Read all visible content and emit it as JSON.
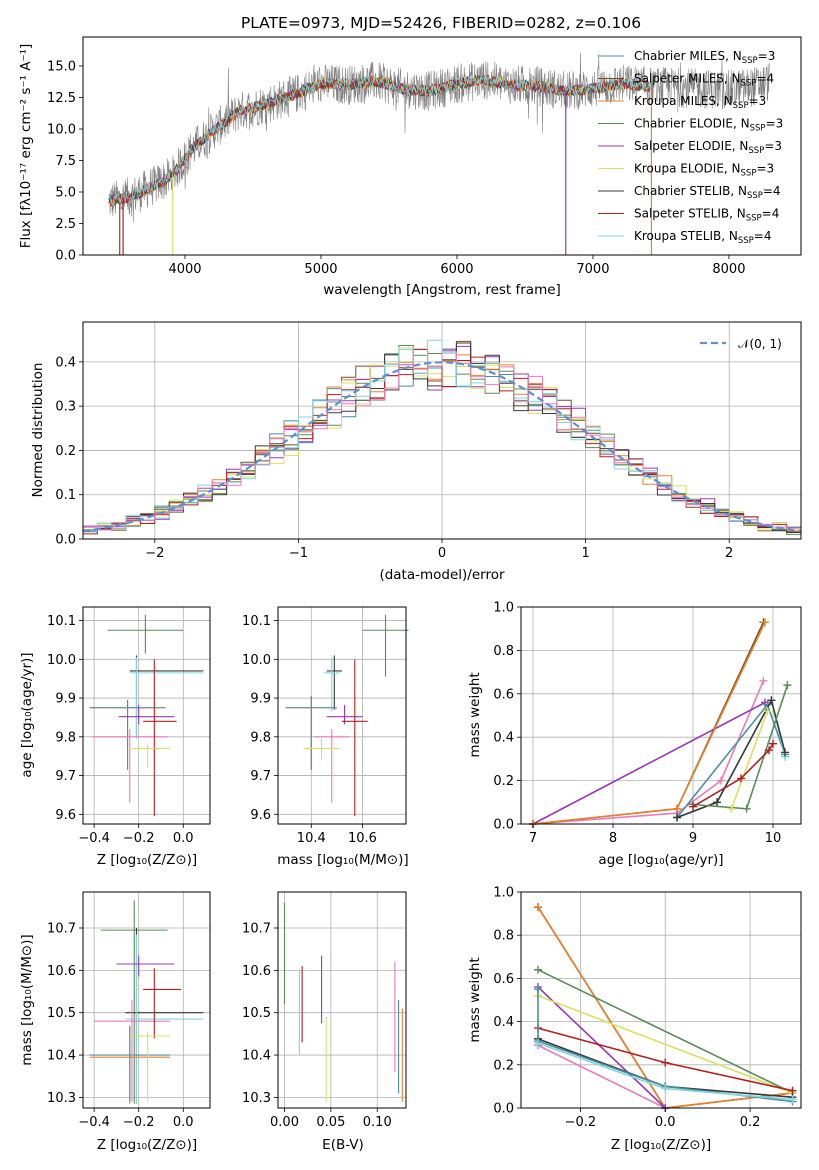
{
  "chart_data": [
    {
      "id": "spectrum",
      "type": "line",
      "title": "PLATE=0973, MJD=52426, FIBERID=0282, z=0.106",
      "xlabel": "wavelength [Angstrom, rest frame]",
      "ylabel": "Flux [fλ10⁻¹⁷ erg cm⁻² s⁻¹ A⁻¹]",
      "xlim": [
        3250,
        8530
      ],
      "ylim": [
        0,
        17.3
      ],
      "xticks": [
        4000,
        5000,
        6000,
        7000,
        8000
      ],
      "yticks": [
        0.0,
        2.5,
        5.0,
        7.5,
        10.0,
        12.5,
        15.0
      ],
      "ytick_labels": [
        "0.0",
        "2.5",
        "5.0",
        "7.5",
        "10.0",
        "12.5",
        "15.0"
      ],
      "legend_position": "upper-right",
      "data_trend": {
        "x": [
          3450,
          3600,
          3750,
          3900,
          4050,
          4200,
          4400,
          4600,
          4800,
          5000,
          5200,
          5400,
          5600,
          5800,
          6000,
          6200,
          6400,
          6600,
          6800,
          7000,
          7200,
          7400,
          7600,
          7800,
          8000,
          8200,
          8300
        ],
        "y": [
          4.3,
          4.6,
          5.4,
          6.2,
          8.4,
          9.8,
          11.4,
          12.0,
          12.7,
          13.6,
          13.5,
          13.8,
          13.2,
          13.0,
          13.6,
          13.9,
          13.5,
          13.4,
          13.0,
          13.2,
          13.6,
          13.4,
          13.3,
          13.2,
          13.1,
          13.4,
          13.8
        ]
      },
      "series": [
        {
          "name": "Chabrier MILES, N$_{SSP}$=3",
          "label": "Chabrier MILES, N",
          "sub": "SSP",
          "n": "=3",
          "color": "#4a8fa0"
        },
        {
          "name": "Salpeter MILES, N$_{SSP}$=4",
          "label": "Salpeter MILES, N",
          "sub": "SSP",
          "n": "=4",
          "color": "#7a4e22"
        },
        {
          "name": "Kroupa MILES, N$_{SSP}$=3",
          "label": "Kroupa MILES, N",
          "sub": "SSP",
          "n": "=3",
          "color": "#e8802c"
        },
        {
          "name": "Chabrier ELODIE, N$_{SSP}$=3",
          "label": "Chabrier ELODIE, N",
          "sub": "SSP",
          "n": "=3",
          "color": "#5a8a5a"
        },
        {
          "name": "Salpeter ELODIE, N$_{SSP}$=3",
          "label": "Salpeter ELODIE, N",
          "sub": "SSP",
          "n": "=3",
          "color": "#9a38b8"
        },
        {
          "name": "Kroupa ELODIE, N$_{SSP}$=3",
          "label": "Kroupa ELODIE, N",
          "sub": "SSP",
          "n": "=3",
          "color": "#d9e060"
        },
        {
          "name": "Chabrier STELIB, N$_{SSP}$=4",
          "label": "Chabrier STELIB, N",
          "sub": "SSP",
          "n": "=4",
          "color": "#3a3a3a"
        },
        {
          "name": "Salpeter STELIB, N$_{SSP}$=4",
          "label": "Salpeter STELIB, N",
          "sub": "SSP",
          "n": "=4",
          "color": "#b22020"
        },
        {
          "name": "Kroupa STELIB, N$_{SSP}$=4",
          "label": "Kroupa STELIB, N",
          "sub": "SSP",
          "n": "=4",
          "color": "#7fd6e0"
        }
      ]
    },
    {
      "id": "residuals",
      "type": "line",
      "xlabel": "(data-model)/error",
      "ylabel": "Normed distribution",
      "xlim": [
        -2.5,
        2.5
      ],
      "ylim": [
        0,
        0.49
      ],
      "xticks": [
        -2,
        -1,
        0,
        1,
        2
      ],
      "xtick_labels": [
        "−2",
        "−1",
        "0",
        "1",
        "2"
      ],
      "yticks": [
        0.0,
        0.1,
        0.2,
        0.3,
        0.4
      ],
      "ytick_labels": [
        "0.0",
        "0.1",
        "0.2",
        "0.3",
        "0.4"
      ],
      "legend": "𝒩(0, 1)",
      "legend_position": "upper-right",
      "reference_curve": "normal(0,1)",
      "bin_width": 0.1,
      "bin_start": -2.5,
      "series_colors": [
        "#4a8fa0",
        "#7a4e22",
        "#e8802c",
        "#5a8a5a",
        "#9a38b8",
        "#d9e060",
        "#3a3a3a",
        "#b22020",
        "#7fd6e0",
        "#e87ab8"
      ]
    },
    {
      "id": "age_vs_Z",
      "type": "errorbar",
      "xlabel": "Z [log₁₀(Z/Z⊙)]",
      "ylabel": "age  [log₁₀(age/yr)]",
      "xlim": [
        -0.45,
        0.12
      ],
      "ylim": [
        9.575,
        10.135
      ],
      "xticks": [
        -0.4,
        -0.2,
        0.0
      ],
      "xtick_labels": [
        "−0.4",
        "−0.2",
        "0.0"
      ],
      "yticks": [
        9.6,
        9.7,
        9.8,
        9.9,
        10.0,
        10.1
      ],
      "ytick_labels": [
        "9.6",
        "9.7",
        "9.8",
        "9.9",
        "10.0",
        "10.1"
      ],
      "points": [
        {
          "x": -0.17,
          "xerr": [
            0.17,
            0.17
          ],
          "y": 10.075,
          "yerr": [
            0.06,
            0.04
          ],
          "color": "#5a8a5a"
        },
        {
          "x": -0.21,
          "xerr": [
            0.03,
            0.3
          ],
          "y": 9.97,
          "yerr": [
            0.17,
            0.04
          ],
          "color": "#3a3a3a"
        },
        {
          "x": -0.21,
          "xerr": [
            0.03,
            0.3
          ],
          "y": 9.965,
          "yerr": [
            0.17,
            0.04
          ],
          "color": "#7fd6e0"
        },
        {
          "x": -0.25,
          "xerr": [
            0.17,
            0.17
          ],
          "y": 9.875,
          "yerr": [
            0.16,
            0.02
          ],
          "color": "#e8802c"
        },
        {
          "x": -0.25,
          "xerr": [
            0.17,
            0.17
          ],
          "y": 9.875,
          "yerr": [
            0.16,
            0.02
          ],
          "color": "#4a8fa0"
        },
        {
          "x": -0.24,
          "xerr": [
            0.17,
            0.17
          ],
          "y": 9.8,
          "yerr": [
            0.17,
            0.02
          ],
          "color": "#e87ab8"
        },
        {
          "x": -0.2,
          "xerr": [
            0.09,
            0.16
          ],
          "y": 9.852,
          "yerr": [
            0.02,
            0.03
          ],
          "color": "#9a38b8"
        },
        {
          "x": -0.13,
          "xerr": [
            0.05,
            0.1
          ],
          "y": 9.84,
          "yerr": [
            0.245,
            0.16
          ],
          "color": "#b22020"
        },
        {
          "x": -0.16,
          "xerr": [
            0.07,
            0.1
          ],
          "y": 9.77,
          "yerr": [
            0.05,
            0.01
          ],
          "color": "#d9e060"
        }
      ]
    },
    {
      "id": "age_vs_mass",
      "type": "errorbar",
      "xlabel": "mass [log₁₀(M/M⊙)]",
      "xlim": [
        10.27,
        10.77
      ],
      "ylim": [
        9.575,
        10.135
      ],
      "xticks": [
        10.4,
        10.6
      ],
      "xtick_labels": [
        "10.4",
        "10.6"
      ],
      "yticks": [
        9.6,
        9.7,
        9.8,
        9.9,
        10.0,
        10.1
      ],
      "ytick_labels": [
        "9.6",
        "9.7",
        "9.8",
        "9.9",
        "10.0",
        "10.1"
      ],
      "points": [
        {
          "x": 10.69,
          "xerr": [
            0.09,
            0.09
          ],
          "y": 10.075,
          "yerr": [
            0.12,
            0.04
          ],
          "color": "#5a8a5a"
        },
        {
          "x": 10.49,
          "xerr": [
            0.03,
            0.03
          ],
          "y": 9.97,
          "yerr": [
            0.1,
            0.04
          ],
          "color": "#3a3a3a"
        },
        {
          "x": 10.48,
          "xerr": [
            0.03,
            0.03
          ],
          "y": 9.965,
          "yerr": [
            0.1,
            0.04
          ],
          "color": "#7fd6e0"
        },
        {
          "x": 10.4,
          "xerr": [
            0.1,
            0.1
          ],
          "y": 9.875,
          "yerr": [
            0.16,
            0.03
          ],
          "color": "#e8802c"
        },
        {
          "x": 10.4,
          "xerr": [
            0.1,
            0.1
          ],
          "y": 9.875,
          "yerr": [
            0.16,
            0.03
          ],
          "color": "#4a8fa0"
        },
        {
          "x": 10.48,
          "xerr": [
            0.07,
            0.07
          ],
          "y": 9.8,
          "yerr": [
            0.17,
            0.02
          ],
          "color": "#e87ab8"
        },
        {
          "x": 10.53,
          "xerr": [
            0.07,
            0.07
          ],
          "y": 9.852,
          "yerr": [
            0.02,
            0.03
          ],
          "color": "#9a38b8"
        },
        {
          "x": 10.57,
          "xerr": [
            0.05,
            0.05
          ],
          "y": 9.84,
          "yerr": [
            0.245,
            0.16
          ],
          "color": "#b22020"
        },
        {
          "x": 10.44,
          "xerr": [
            0.07,
            0.07
          ],
          "y": 9.77,
          "yerr": [
            0.03,
            0.03
          ],
          "color": "#d9e060"
        }
      ]
    },
    {
      "id": "massweight_vs_age",
      "type": "line",
      "xlabel": "age  [log₁₀(age/yr)]",
      "ylabel": "mass weight",
      "xlim": [
        6.85,
        10.35
      ],
      "ylim": [
        0,
        1.0
      ],
      "xticks": [
        7,
        8,
        9,
        10
      ],
      "xtick_labels": [
        "7",
        "8",
        "9",
        "10"
      ],
      "yticks": [
        0.0,
        0.2,
        0.4,
        0.6,
        0.8,
        1.0
      ],
      "ytick_labels": [
        "0.0",
        "0.2",
        "0.4",
        "0.6",
        "0.8",
        "1.0"
      ],
      "series": [
        {
          "color": "#e87ab8",
          "x": [
            7.0,
            8.8,
            9.35,
            9.88
          ],
          "y": [
            0.0,
            0.05,
            0.2,
            0.66
          ]
        },
        {
          "color": "#9a38b8",
          "x": [
            7.0,
            9.9
          ],
          "y": [
            0.0,
            0.56
          ]
        },
        {
          "color": "#4a8fa0",
          "x": [
            8.8,
            9.93,
            10.15
          ],
          "y": [
            0.03,
            0.55,
            0.32
          ]
        },
        {
          "color": "#7fd6e0",
          "x": [
            8.8,
            9.3,
            9.98,
            10.15
          ],
          "y": [
            0.03,
            0.1,
            0.57,
            0.31
          ]
        },
        {
          "color": "#3a3a3a",
          "x": [
            8.8,
            9.3,
            9.98,
            10.15
          ],
          "y": [
            0.03,
            0.1,
            0.57,
            0.33
          ]
        },
        {
          "color": "#5a8a5a",
          "x": [
            9.0,
            9.67,
            10.18
          ],
          "y": [
            0.09,
            0.07,
            0.64
          ]
        },
        {
          "color": "#d9e060",
          "x": [
            9.48,
            9.93
          ],
          "y": [
            0.07,
            0.52
          ]
        },
        {
          "color": "#b22020",
          "x": [
            9.0,
            9.6,
            9.95,
            10.0
          ],
          "y": [
            0.08,
            0.21,
            0.34,
            0.37
          ]
        },
        {
          "color": "#7a4e22",
          "x": [
            7.0,
            8.8,
            9.88
          ],
          "y": [
            0.0,
            0.07,
            0.93
          ]
        },
        {
          "color": "#e8802c",
          "x": [
            7.0,
            8.8,
            9.9
          ],
          "y": [
            0.0,
            0.07,
            0.93
          ]
        }
      ]
    },
    {
      "id": "mass_vs_Z",
      "type": "errorbar",
      "xlabel": "Z [log₁₀(Z/Z⊙)]",
      "ylabel": "mass [log₁₀(M/M⊙)]",
      "xlim": [
        -0.45,
        0.12
      ],
      "ylim": [
        10.275,
        10.785
      ],
      "xticks": [
        -0.4,
        -0.2,
        0.0
      ],
      "xtick_labels": [
        "−0.4",
        "−0.2",
        "0.0"
      ],
      "yticks": [
        10.3,
        10.4,
        10.5,
        10.6,
        10.7
      ],
      "ytick_labels": [
        "10.3",
        "10.4",
        "10.5",
        "10.6",
        "10.7"
      ],
      "points": [
        {
          "x": -0.22,
          "xerr": [
            0.15,
            0.15
          ],
          "y": 10.695,
          "yerr": [
            0.41,
            0.07
          ],
          "color": "#5a8a5a"
        },
        {
          "x": -0.21,
          "xerr": [
            0.05,
            0.3
          ],
          "y": 10.5,
          "yerr": [
            0.2,
            0.2
          ],
          "color": "#3a3a3a"
        },
        {
          "x": -0.21,
          "xerr": [
            0.05,
            0.3
          ],
          "y": 10.485,
          "yerr": [
            0.2,
            0.2
          ],
          "color": "#7fd6e0"
        },
        {
          "x": -0.24,
          "xerr": [
            0.18,
            0.18
          ],
          "y": 10.395,
          "yerr": [
            0.11,
            0.07
          ],
          "color": "#e8802c"
        },
        {
          "x": -0.24,
          "xerr": [
            0.18,
            0.18
          ],
          "y": 10.4,
          "yerr": [
            0.11,
            0.07
          ],
          "color": "#4a8fa0"
        },
        {
          "x": -0.23,
          "xerr": [
            0.17,
            0.17
          ],
          "y": 10.48,
          "yerr": [
            0.19,
            0.05
          ],
          "color": "#e87ab8"
        },
        {
          "x": -0.2,
          "xerr": [
            0.1,
            0.16
          ],
          "y": 10.615,
          "yerr": [
            0.03,
            0.02
          ],
          "color": "#9a38b8"
        },
        {
          "x": -0.13,
          "xerr": [
            0.05,
            0.12
          ],
          "y": 10.555,
          "yerr": [
            0.115,
            0.05
          ],
          "color": "#b22020"
        },
        {
          "x": -0.16,
          "xerr": [
            0.07,
            0.1
          ],
          "y": 10.445,
          "yerr": [
            0.155,
            0.01
          ],
          "color": "#d9e060"
        }
      ]
    },
    {
      "id": "mass_vs_ebv",
      "type": "errorbar",
      "xlabel": "E(B-V)",
      "xlim": [
        -0.007,
        0.131
      ],
      "ylim": [
        10.275,
        10.785
      ],
      "xticks": [
        0.0,
        0.05,
        0.1
      ],
      "xtick_labels": [
        "0.00",
        "0.05",
        "0.10"
      ],
      "yticks": [
        10.3,
        10.4,
        10.5,
        10.6,
        10.7
      ],
      "ytick_labels": [
        "10.3",
        "10.4",
        "10.5",
        "10.6",
        "10.7"
      ],
      "points": [
        {
          "x": 0.0,
          "y": 10.64,
          "yerr": [
            0.12,
            0.12
          ],
          "color": "#5a8a5a"
        },
        {
          "x": 0.016,
          "y": 10.5,
          "yerr": [
            0.1,
            0.1
          ],
          "color": "#7fd6e0"
        },
        {
          "x": 0.019,
          "y": 10.52,
          "yerr": [
            0.09,
            0.09
          ],
          "color": "#b22020"
        },
        {
          "x": 0.04,
          "y": 10.555,
          "yerr": [
            0.08,
            0.08
          ],
          "color": "#9a38b8"
        },
        {
          "x": 0.045,
          "y": 10.39,
          "yerr": [
            0.1,
            0.1
          ],
          "color": "#d9e060"
        },
        {
          "x": 0.119,
          "y": 10.49,
          "yerr": [
            0.13,
            0.13
          ],
          "color": "#e87ab8"
        },
        {
          "x": 0.123,
          "y": 10.42,
          "yerr": [
            0.11,
            0.11
          ],
          "color": "#4a8fa0"
        },
        {
          "x": 0.127,
          "y": 10.4,
          "yerr": [
            0.11,
            0.11
          ],
          "color": "#e8802c"
        }
      ]
    },
    {
      "id": "massweight_vs_Z",
      "type": "line",
      "xlabel": "Z [log₁₀(Z/Z⊙)]",
      "ylabel": "mass weight",
      "xlim": [
        -0.34,
        0.32
      ],
      "ylim": [
        0,
        1.0
      ],
      "xticks": [
        -0.2,
        0.0,
        0.2
      ],
      "xtick_labels": [
        "−0.2",
        "0.0",
        "0.2"
      ],
      "yticks": [
        0.0,
        0.2,
        0.4,
        0.6,
        0.8,
        1.0
      ],
      "ytick_labels": [
        "0.0",
        "0.2",
        "0.4",
        "0.6",
        "0.8",
        "1.0"
      ],
      "series": [
        {
          "color": "#7a4e22",
          "x": [
            -0.3,
            0.0,
            0.3
          ],
          "y": [
            0.93,
            0.0,
            0.07
          ]
        },
        {
          "color": "#e8802c",
          "x": [
            -0.3,
            0.0,
            0.3
          ],
          "y": [
            0.93,
            0.0,
            0.07
          ]
        },
        {
          "color": "#e87ab8",
          "x": [
            -0.3,
            0.0
          ],
          "y": [
            0.29,
            0.0
          ]
        },
        {
          "color": "#9a38b8",
          "x": [
            -0.3,
            0.0
          ],
          "y": [
            0.56,
            0.0
          ]
        },
        {
          "color": "#5a8a5a",
          "x": [
            -0.3,
            0.3
          ],
          "y": [
            0.64,
            0.07
          ]
        },
        {
          "color": "#d9e060",
          "x": [
            -0.3,
            0.3
          ],
          "y": [
            0.52,
            0.07
          ]
        },
        {
          "color": "#b22020",
          "x": [
            -0.3,
            0.0,
            0.3
          ],
          "y": [
            0.37,
            0.21,
            0.08
          ]
        },
        {
          "color": "#3a3a3a",
          "x": [
            -0.3,
            0.0,
            0.3
          ],
          "y": [
            0.32,
            0.1,
            0.05
          ]
        },
        {
          "color": "#4a8fa0",
          "x": [
            -0.3,
            -0.3,
            0.0,
            0.3
          ],
          "y": [
            0.55,
            0.31,
            0.1,
            0.03
          ]
        },
        {
          "color": "#7fd6e0",
          "x": [
            -0.3,
            0.0,
            0.3
          ],
          "y": [
            0.3,
            0.09,
            0.04
          ]
        }
      ]
    }
  ]
}
